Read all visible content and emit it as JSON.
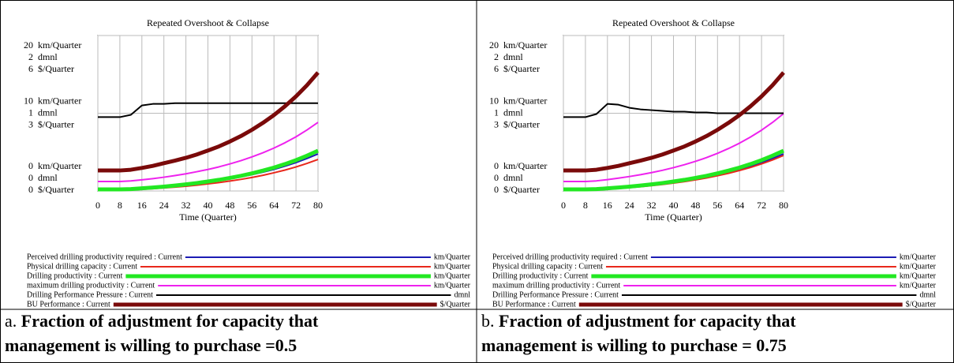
{
  "chart_data": [
    {
      "type": "line",
      "title": "Repeated Overshoot & Collapse",
      "caption_label": "a.",
      "caption": [
        "Fraction of adjustment for capacity that",
        "management is willing to purchase =0.5"
      ],
      "xlabel": "Time (Quarter)",
      "x": [
        0,
        4,
        8,
        12,
        16,
        20,
        24,
        28,
        32,
        36,
        40,
        44,
        48,
        52,
        56,
        60,
        64,
        68,
        72,
        76,
        80
      ],
      "xlim": [
        0,
        80
      ],
      "xticks": [
        0,
        8,
        16,
        24,
        32,
        40,
        48,
        56,
        64,
        72,
        80
      ],
      "yunit": "km/Quarter",
      "ylim": [
        0,
        20
      ],
      "yticks": [
        0,
        10,
        20
      ],
      "y2unit": "dmnl",
      "y2lim": [
        0,
        2
      ],
      "y2ticks": [
        0,
        1,
        2
      ],
      "y3unit": "$/Quarter",
      "y3lim": [
        0,
        6
      ],
      "y3ticks": [
        0,
        3,
        6
      ],
      "grid": true,
      "series": [
        {
          "name": "Perceived drilling productivity required : Current",
          "unit": "km/Quarter",
          "axis": "y",
          "color": "#1c1cb4",
          "width": 2,
          "values": [
            0.2,
            0.2,
            0.2,
            0.24,
            0.33,
            0.42,
            0.53,
            0.66,
            0.79,
            0.95,
            1.13,
            1.33,
            1.56,
            1.81,
            2.1,
            2.42,
            2.78,
            3.19,
            3.65,
            4.18,
            4.77
          ]
        },
        {
          "name": "Physical drilling capacity : Current",
          "unit": "km/Quarter",
          "axis": "y",
          "color": "#e8281c",
          "width": 2,
          "values": [
            0.1,
            0.1,
            0.1,
            0.13,
            0.21,
            0.29,
            0.39,
            0.5,
            0.61,
            0.75,
            0.91,
            1.08,
            1.28,
            1.49,
            1.74,
            2.02,
            2.34,
            2.69,
            3.09,
            3.55,
            4.06
          ]
        },
        {
          "name": "Drilling productivity : Current",
          "unit": "km/Quarter",
          "axis": "y",
          "color": "#22e822",
          "width": 5,
          "values": [
            0.2,
            0.2,
            0.2,
            0.24,
            0.34,
            0.44,
            0.56,
            0.7,
            0.85,
            1.02,
            1.22,
            1.43,
            1.68,
            1.95,
            2.27,
            2.62,
            3.01,
            3.46,
            3.96,
            4.54,
            5.18
          ]
        },
        {
          "name": "maximum drilling productivity : Current",
          "unit": "km/Quarter",
          "axis": "y",
          "color": "#ee22ee",
          "width": 2,
          "values": [
            1.22,
            1.22,
            1.22,
            1.29,
            1.43,
            1.59,
            1.77,
            1.98,
            2.21,
            2.48,
            2.77,
            3.1,
            3.48,
            3.9,
            4.38,
            4.92,
            5.52,
            6.2,
            6.97,
            7.85,
            8.83
          ]
        },
        {
          "name": "Drilling Performance Pressure : Current",
          "unit": "dmnl",
          "axis": "y2",
          "color": "#000000",
          "width": 2,
          "values": [
            0.95,
            0.95,
            0.95,
            0.98,
            1.1,
            1.12,
            1.12,
            1.13,
            1.13,
            1.13,
            1.13,
            1.13,
            1.13,
            1.13,
            1.13,
            1.13,
            1.13,
            1.13,
            1.13,
            1.13,
            1.13
          ]
        },
        {
          "name": "BU Performance : Current",
          "unit": "$/Quarter",
          "axis": "y3",
          "color": "#7a0a0a",
          "width": 5,
          "values": [
            0.79,
            0.79,
            0.79,
            0.82,
            0.89,
            0.97,
            1.07,
            1.17,
            1.28,
            1.41,
            1.56,
            1.72,
            1.91,
            2.12,
            2.36,
            2.63,
            2.93,
            3.27,
            3.65,
            4.08,
            4.57
          ]
        }
      ]
    },
    {
      "type": "line",
      "title": "Repeated Overshoot & Collapse",
      "caption_label": "b.",
      "caption": [
        "Fraction of adjustment for capacity that",
        "management is willing to purchase = 0.75"
      ],
      "xlabel": "Time (Quarter)",
      "x": [
        0,
        4,
        8,
        12,
        16,
        20,
        24,
        28,
        32,
        36,
        40,
        44,
        48,
        52,
        56,
        60,
        64,
        68,
        72,
        76,
        80
      ],
      "xlim": [
        0,
        80
      ],
      "xticks": [
        0,
        8,
        16,
        24,
        32,
        40,
        48,
        56,
        64,
        72,
        80
      ],
      "yunit": "km/Quarter",
      "ylim": [
        0,
        20
      ],
      "yticks": [
        0,
        10,
        20
      ],
      "y2unit": "dmnl",
      "y2lim": [
        0,
        2
      ],
      "y2ticks": [
        0,
        1,
        2
      ],
      "y3unit": "$/Quarter",
      "y3lim": [
        0,
        6
      ],
      "y3ticks": [
        0,
        3,
        6
      ],
      "grid": true,
      "series": [
        {
          "name": "Perceived drilling productivity required : Current",
          "unit": "km/Quarter",
          "axis": "y",
          "color": "#1c1cb4",
          "width": 2,
          "values": [
            0.2,
            0.2,
            0.2,
            0.24,
            0.33,
            0.42,
            0.53,
            0.66,
            0.79,
            0.95,
            1.13,
            1.33,
            1.56,
            1.81,
            2.1,
            2.42,
            2.78,
            3.19,
            3.65,
            4.18,
            4.77
          ]
        },
        {
          "name": "Physical drilling capacity : Current",
          "unit": "km/Quarter",
          "axis": "y",
          "color": "#e8281c",
          "width": 2,
          "values": [
            0.1,
            0.1,
            0.1,
            0.14,
            0.22,
            0.32,
            0.43,
            0.55,
            0.68,
            0.84,
            1.01,
            1.2,
            1.43,
            1.67,
            1.96,
            2.27,
            2.63,
            3.03,
            3.48,
            3.99,
            4.57
          ]
        },
        {
          "name": "Drilling productivity : Current",
          "unit": "km/Quarter",
          "axis": "y",
          "color": "#22e822",
          "width": 5,
          "values": [
            0.2,
            0.2,
            0.2,
            0.24,
            0.34,
            0.44,
            0.56,
            0.7,
            0.85,
            1.02,
            1.22,
            1.43,
            1.68,
            1.95,
            2.27,
            2.62,
            3.01,
            3.46,
            3.96,
            4.54,
            5.18
          ]
        },
        {
          "name": "maximum drilling productivity : Current",
          "unit": "km/Quarter",
          "axis": "y",
          "color": "#ee22ee",
          "width": 2,
          "values": [
            1.22,
            1.22,
            1.22,
            1.3,
            1.46,
            1.65,
            1.86,
            2.09,
            2.36,
            2.66,
            3.0,
            3.38,
            3.81,
            4.29,
            4.84,
            5.46,
            6.15,
            6.94,
            7.82,
            8.82,
            9.95
          ]
        },
        {
          "name": "Drilling Performance Pressure : Current",
          "unit": "dmnl",
          "axis": "y2",
          "color": "#000000",
          "width": 2,
          "values": [
            0.95,
            0.95,
            0.95,
            0.99,
            1.12,
            1.11,
            1.07,
            1.05,
            1.04,
            1.03,
            1.02,
            1.02,
            1.01,
            1.01,
            1.0,
            1.0,
            1.0,
            1.0,
            1.0,
            1.0,
            1.0
          ]
        },
        {
          "name": "BU Performance : Current",
          "unit": "$/Quarter",
          "axis": "y3",
          "color": "#7a0a0a",
          "width": 5,
          "values": [
            0.79,
            0.79,
            0.79,
            0.82,
            0.89,
            0.97,
            1.07,
            1.17,
            1.28,
            1.41,
            1.56,
            1.72,
            1.91,
            2.12,
            2.36,
            2.63,
            2.93,
            3.27,
            3.65,
            4.08,
            4.57
          ]
        }
      ]
    }
  ]
}
